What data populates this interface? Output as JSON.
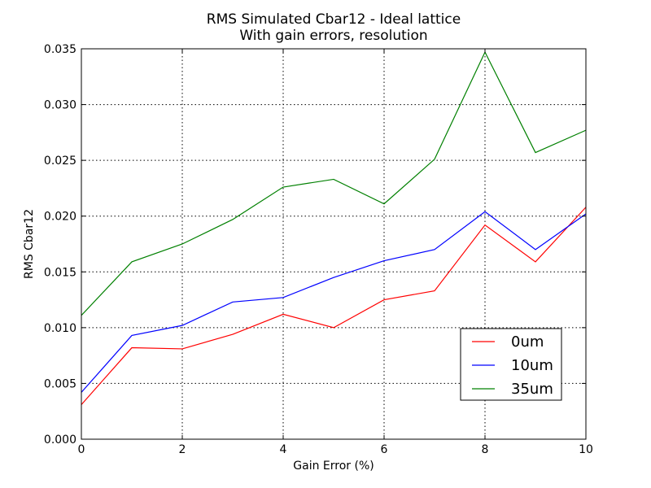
{
  "chart_data": {
    "type": "line",
    "title": "RMS Simulated Cbar12 - Ideal lattice",
    "subtitle": "With gain errors, resolution",
    "xlabel": "Gain Error (%)",
    "ylabel": "RMS Cbar12",
    "xlim": [
      0,
      10
    ],
    "ylim": [
      0,
      0.035
    ],
    "x_ticks": [
      "0",
      "2",
      "4",
      "6",
      "8",
      "10"
    ],
    "y_ticks": [
      "0.000",
      "0.005",
      "0.010",
      "0.015",
      "0.020",
      "0.025",
      "0.030",
      "0.035"
    ],
    "grid": true,
    "legend_position": "lower-right",
    "x": [
      0,
      1,
      2,
      3,
      4,
      5,
      6,
      7,
      8,
      9,
      10
    ],
    "series": [
      {
        "name": "0um",
        "color": "#ff0000",
        "values": [
          0.0031,
          0.0082,
          0.0081,
          0.0094,
          0.0112,
          0.01,
          0.0125,
          0.0133,
          0.0192,
          0.0159,
          0.0208
        ]
      },
      {
        "name": "10um",
        "color": "#0000ff",
        "values": [
          0.0042,
          0.0093,
          0.0102,
          0.0123,
          0.0127,
          0.0145,
          0.016,
          0.017,
          0.0204,
          0.017,
          0.0202
        ]
      },
      {
        "name": "35um",
        "color": "#008000",
        "values": [
          0.0111,
          0.0159,
          0.0175,
          0.0197,
          0.0226,
          0.0233,
          0.0211,
          0.0251,
          0.0347,
          0.0257,
          0.0277
        ]
      }
    ]
  }
}
